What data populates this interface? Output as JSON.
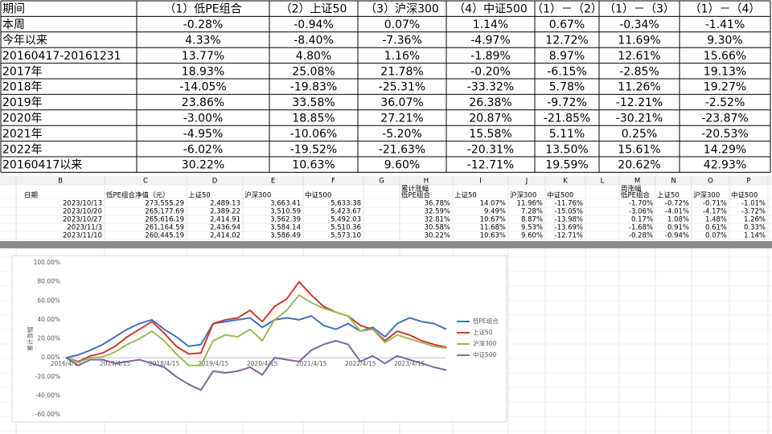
{
  "summary_table": {
    "header": [
      "期间",
      "（1）低PE组合",
      "（2）上证50",
      "（3）沪深300",
      "（4）中证500",
      "（1）－（2）",
      "（1）－（3）",
      "（1）－（4）"
    ],
    "rows": [
      [
        "本周",
        "-0.28%",
        "-0.94%",
        "0.07%",
        "1.14%",
        "0.67%",
        "-0.34%",
        "-1.41%"
      ],
      [
        "今年以来",
        "4.33%",
        "-8.40%",
        "-7.36%",
        "-4.97%",
        "12.72%",
        "11.69%",
        "9.30%"
      ],
      [
        "20160417-20161231",
        "13.77%",
        "4.80%",
        "1.16%",
        "-1.89%",
        "8.97%",
        "12.61%",
        "15.66%"
      ],
      [
        "2017年",
        "18.93%",
        "25.08%",
        "21.78%",
        "-0.20%",
        "-6.15%",
        "-2.85%",
        "19.13%"
      ],
      [
        "2018年",
        "-14.05%",
        "-19.83%",
        "-25.31%",
        "-33.32%",
        "5.78%",
        "11.26%",
        "19.27%"
      ],
      [
        "2019年",
        "23.86%",
        "33.58%",
        "36.07%",
        "26.38%",
        "-9.72%",
        "-12.21%",
        "-2.52%"
      ],
      [
        "2020年",
        "-3.00%",
        "18.85%",
        "27.21%",
        "20.87%",
        "-21.85%",
        "-30.21%",
        "-23.87%"
      ],
      [
        "2021年",
        "-4.95%",
        "-10.06%",
        "-5.20%",
        "15.58%",
        "5.11%",
        "0.25%",
        "-20.53%"
      ],
      [
        "2022年",
        "-6.02%",
        "-19.52%",
        "-21.63%",
        "-20.31%",
        "13.50%",
        "15.61%",
        "14.29%"
      ],
      [
        "20160417以来",
        "30.22%",
        "10.63%",
        "9.60%",
        "-12.71%",
        "19.59%",
        "20.62%",
        "42.93%"
      ]
    ]
  },
  "sheet": {
    "column_letters": [
      "B",
      "C",
      "D",
      "E",
      "F",
      "G",
      "H",
      "I",
      "J",
      "K",
      "L",
      "M",
      "N",
      "O",
      "P"
    ],
    "group_headers": [
      "累计涨幅",
      "周涨幅"
    ],
    "headers": [
      "日期",
      "低PE组合净值（元）",
      "上证50",
      "沪深300",
      "中证500",
      "低PE组合",
      "上证50",
      "沪深300",
      "中证500",
      "低PE组合",
      "上证50",
      "沪深300",
      "中证500"
    ],
    "rows": [
      [
        "2023/10/13",
        "273,555.29",
        "2,489.13",
        "3,663.41",
        "5,633.38",
        "36.78%",
        "14.07%",
        "11.96%",
        "-11.76%",
        "-1.70%",
        "-0.72%",
        "-0.71%",
        "-1.01%"
      ],
      [
        "2023/10/20",
        "265,177.69",
        "2,389.22",
        "3,510.59",
        "5,423.67",
        "32.59%",
        "9.49%",
        "7.28%",
        "-15.05%",
        "-3.06%",
        "-4.01%",
        "-4.17%",
        "-3.72%"
      ],
      [
        "2023/10/27",
        "265,616.19",
        "2,414.91",
        "3,562.39",
        "5,492.03",
        "32.81%",
        "10.67%",
        "8.87%",
        "-13.98%",
        "0.17%",
        "1.08%",
        "1.48%",
        "1.26%"
      ],
      [
        "2023/11/3",
        "261,164.59",
        "2,436.94",
        "3,584.14",
        "5,510.36",
        "30.58%",
        "11.68%",
        "9.53%",
        "-13.69%",
        "-1.68%",
        "0.91%",
        "0.61%",
        "0.33%"
      ],
      [
        "2023/11/10",
        "260,445.19",
        "2,414.02",
        "3,586.49",
        "5,573.10",
        "30.22%",
        "10.63%",
        "9.60%",
        "-12.71%",
        "-0.28%",
        "-0.94%",
        "0.07%",
        "1.14%"
      ]
    ]
  },
  "chart_data": {
    "type": "line",
    "y_label": "累计涨幅",
    "categories": [
      "2016/4/15",
      null,
      null,
      null,
      "2017/4/15",
      null,
      null,
      null,
      "2018/4/15",
      null,
      null,
      null,
      "2019/4/15",
      null,
      null,
      null,
      "2020/4/15",
      null,
      null,
      null,
      "2021/4/15",
      null,
      null,
      null,
      "2022/4/15",
      null,
      null,
      null,
      "2023/4/15",
      null,
      null,
      null
    ],
    "series": [
      {
        "name": "低PE组合",
        "color": "#4472c4",
        "values": [
          0,
          3,
          8,
          14,
          22,
          30,
          36,
          40,
          30,
          22,
          12,
          14,
          36,
          38,
          40,
          42,
          32,
          40,
          42,
          40,
          44,
          34,
          30,
          36,
          28,
          32,
          22,
          36,
          42,
          38,
          36,
          30
        ]
      },
      {
        "name": "上证50",
        "color": "#d2392c",
        "values": [
          0,
          -4,
          2,
          5,
          12,
          22,
          30,
          38,
          26,
          12,
          4,
          5,
          36,
          40,
          42,
          50,
          38,
          54,
          62,
          80,
          66,
          54,
          48,
          44,
          34,
          30,
          18,
          28,
          24,
          18,
          14,
          11
        ]
      },
      {
        "name": "沪深300",
        "color": "#9bbb59",
        "values": [
          0,
          -5,
          0,
          1,
          6,
          14,
          20,
          28,
          18,
          4,
          -8,
          -8,
          18,
          24,
          22,
          30,
          18,
          40,
          50,
          66,
          58,
          52,
          48,
          44,
          28,
          30,
          16,
          24,
          20,
          16,
          12,
          10
        ]
      },
      {
        "name": "中证500",
        "color": "#8064a2",
        "values": [
          0,
          -8,
          -2,
          -2,
          -6,
          -4,
          -2,
          -6,
          -10,
          -20,
          -28,
          -34,
          -14,
          -16,
          -14,
          -10,
          -18,
          0,
          -2,
          -4,
          8,
          14,
          18,
          14,
          -4,
          2,
          -6,
          2,
          -2,
          -6,
          -10,
          -13
        ]
      }
    ],
    "ylim": [
      -60,
      100
    ],
    "yticks": [
      {
        "value": -60,
        "label": "-60.00%"
      },
      {
        "value": -40,
        "label": "-40.00%"
      },
      {
        "value": -20,
        "label": "-20.00%"
      },
      {
        "value": 0,
        "label": "0.00%"
      },
      {
        "value": 20,
        "label": "20.00%"
      },
      {
        "value": 40,
        "label": "40.00%"
      },
      {
        "value": 60,
        "label": "60.00%"
      },
      {
        "value": 80,
        "label": "80.00%"
      },
      {
        "value": 100,
        "label": "100.00%"
      }
    ],
    "grid": false,
    "legend": "right"
  }
}
